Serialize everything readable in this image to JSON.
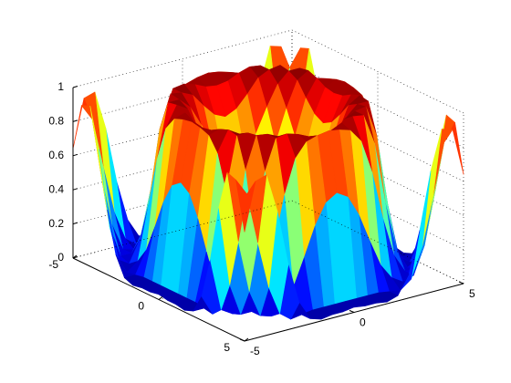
{
  "chart_data": {
    "type": "surface",
    "title": "",
    "xlabel": "",
    "ylabel": "",
    "zlabel": "",
    "xlim": [
      -5,
      5
    ],
    "ylim": [
      -5,
      5
    ],
    "zlim": [
      0,
      1
    ],
    "x_ticks": [
      "-5",
      "0",
      "5"
    ],
    "y_ticks": [
      "-5",
      "0",
      "5"
    ],
    "z_ticks": [
      "0",
      "0.2",
      "0.4",
      "0.6",
      "0.8",
      "1"
    ],
    "grid": true,
    "colormap": "jet",
    "colormap_stops": [
      "#00008f",
      "#0000ff",
      "#0080ff",
      "#00ffff",
      "#80ff80",
      "#ffff00",
      "#ff8000",
      "#ff0000",
      "#800000"
    ],
    "surface": {
      "x": [
        -5.0,
        -4.5,
        -4.0,
        -3.5,
        -3.0,
        -2.5,
        -2.0,
        -1.5,
        -1.0,
        -0.5,
        0.0,
        0.5,
        1.0,
        1.5,
        2.0,
        2.5,
        3.0,
        3.5,
        4.0,
        4.5,
        5.0
      ],
      "y": [
        -5.0,
        -4.5,
        -4.0,
        -3.5,
        -3.0,
        -2.5,
        -2.0,
        -1.5,
        -1.0,
        -0.5,
        0.0,
        0.5,
        1.0,
        1.5,
        2.0,
        2.5,
        3.0,
        3.5,
        4.0,
        4.5,
        5.0
      ],
      "z": [
        [
          0.64,
          0.92,
          0.94,
          0.71,
          0.38,
          0.14,
          0.03,
          0.01,
          0.02,
          0.02,
          0.03,
          0.02,
          0.02,
          0.01,
          0.03,
          0.14,
          0.38,
          0.71,
          0.94,
          0.92,
          0.64
        ],
        [
          0.92,
          0.82,
          0.52,
          0.24,
          0.07,
          0.02,
          0.03,
          0.04,
          0.04,
          0.04,
          0.04,
          0.04,
          0.04,
          0.04,
          0.03,
          0.02,
          0.07,
          0.24,
          0.52,
          0.82,
          0.92
        ],
        [
          0.94,
          0.52,
          0.21,
          0.05,
          0.03,
          0.07,
          0.16,
          0.32,
          0.49,
          0.61,
          0.65,
          0.61,
          0.49,
          0.32,
          0.16,
          0.07,
          0.03,
          0.05,
          0.21,
          0.52,
          0.94
        ],
        [
          0.71,
          0.24,
          0.05,
          0.05,
          0.16,
          0.39,
          0.68,
          0.88,
          0.96,
          0.98,
          0.99,
          0.98,
          0.96,
          0.88,
          0.68,
          0.39,
          0.16,
          0.05,
          0.05,
          0.24,
          0.71
        ],
        [
          0.38,
          0.07,
          0.03,
          0.16,
          0.44,
          0.81,
          0.99,
          1.0,
          0.98,
          0.95,
          0.94,
          0.95,
          0.98,
          1.0,
          0.99,
          0.81,
          0.44,
          0.16,
          0.03,
          0.07,
          0.38
        ],
        [
          0.14,
          0.02,
          0.07,
          0.39,
          0.81,
          1.0,
          0.99,
          0.96,
          0.88,
          0.81,
          0.78,
          0.81,
          0.88,
          0.96,
          0.99,
          1.0,
          0.81,
          0.39,
          0.07,
          0.02,
          0.14
        ],
        [
          0.03,
          0.03,
          0.16,
          0.68,
          0.99,
          0.99,
          0.93,
          0.81,
          0.67,
          0.57,
          0.54,
          0.57,
          0.67,
          0.81,
          0.93,
          0.99,
          0.99,
          0.68,
          0.16,
          0.03,
          0.03
        ],
        [
          0.01,
          0.04,
          0.32,
          0.88,
          1.0,
          0.96,
          0.81,
          0.62,
          0.45,
          0.34,
          0.3,
          0.34,
          0.45,
          0.62,
          0.81,
          0.96,
          1.0,
          0.88,
          0.32,
          0.04,
          0.01
        ],
        [
          0.02,
          0.04,
          0.49,
          0.96,
          0.98,
          0.88,
          0.67,
          0.45,
          0.26,
          0.15,
          0.12,
          0.15,
          0.26,
          0.45,
          0.67,
          0.88,
          0.98,
          0.96,
          0.49,
          0.04,
          0.02
        ],
        [
          0.02,
          0.04,
          0.61,
          0.98,
          0.95,
          0.81,
          0.57,
          0.34,
          0.15,
          0.07,
          0.12,
          0.07,
          0.15,
          0.34,
          0.57,
          0.81,
          0.95,
          0.98,
          0.61,
          0.04,
          0.02
        ],
        [
          0.03,
          0.04,
          0.65,
          0.99,
          0.94,
          0.78,
          0.54,
          0.3,
          0.12,
          0.12,
          0.72,
          0.12,
          0.12,
          0.3,
          0.54,
          0.78,
          0.94,
          0.99,
          0.65,
          0.04,
          0.03
        ],
        [
          0.02,
          0.04,
          0.61,
          0.98,
          0.95,
          0.81,
          0.57,
          0.34,
          0.15,
          0.07,
          0.12,
          0.07,
          0.15,
          0.34,
          0.57,
          0.81,
          0.95,
          0.98,
          0.61,
          0.04,
          0.02
        ],
        [
          0.02,
          0.04,
          0.49,
          0.96,
          0.98,
          0.88,
          0.67,
          0.45,
          0.26,
          0.15,
          0.12,
          0.15,
          0.26,
          0.45,
          0.67,
          0.88,
          0.98,
          0.96,
          0.49,
          0.04,
          0.02
        ],
        [
          0.01,
          0.04,
          0.32,
          0.88,
          1.0,
          0.96,
          0.81,
          0.62,
          0.45,
          0.34,
          0.3,
          0.34,
          0.45,
          0.62,
          0.81,
          0.96,
          1.0,
          0.88,
          0.32,
          0.04,
          0.01
        ],
        [
          0.03,
          0.03,
          0.16,
          0.68,
          0.99,
          0.99,
          0.93,
          0.81,
          0.67,
          0.57,
          0.54,
          0.57,
          0.67,
          0.81,
          0.93,
          0.99,
          0.99,
          0.68,
          0.16,
          0.03,
          0.03
        ],
        [
          0.14,
          0.02,
          0.07,
          0.39,
          0.81,
          1.0,
          0.99,
          0.96,
          0.88,
          0.81,
          0.78,
          0.81,
          0.88,
          0.96,
          0.99,
          1.0,
          0.81,
          0.39,
          0.07,
          0.02,
          0.14
        ],
        [
          0.38,
          0.07,
          0.03,
          0.16,
          0.44,
          0.81,
          0.99,
          1.0,
          0.98,
          0.95,
          0.94,
          0.95,
          0.98,
          1.0,
          0.99,
          0.81,
          0.44,
          0.16,
          0.03,
          0.07,
          0.38
        ],
        [
          0.71,
          0.24,
          0.05,
          0.05,
          0.16,
          0.39,
          0.68,
          0.88,
          0.96,
          0.98,
          0.99,
          0.98,
          0.96,
          0.88,
          0.68,
          0.39,
          0.16,
          0.05,
          0.05,
          0.24,
          0.71
        ],
        [
          0.94,
          0.52,
          0.21,
          0.05,
          0.03,
          0.07,
          0.16,
          0.32,
          0.49,
          0.61,
          0.65,
          0.61,
          0.49,
          0.32,
          0.16,
          0.07,
          0.03,
          0.05,
          0.21,
          0.52,
          0.94
        ],
        [
          0.92,
          0.82,
          0.52,
          0.24,
          0.07,
          0.02,
          0.03,
          0.04,
          0.04,
          0.04,
          0.04,
          0.04,
          0.04,
          0.04,
          0.03,
          0.02,
          0.07,
          0.24,
          0.52,
          0.82,
          0.92
        ],
        [
          0.64,
          0.92,
          0.94,
          0.71,
          0.38,
          0.14,
          0.03,
          0.01,
          0.02,
          0.02,
          0.03,
          0.02,
          0.02,
          0.01,
          0.03,
          0.14,
          0.38,
          0.71,
          0.94,
          0.92,
          0.64
        ]
      ]
    }
  }
}
